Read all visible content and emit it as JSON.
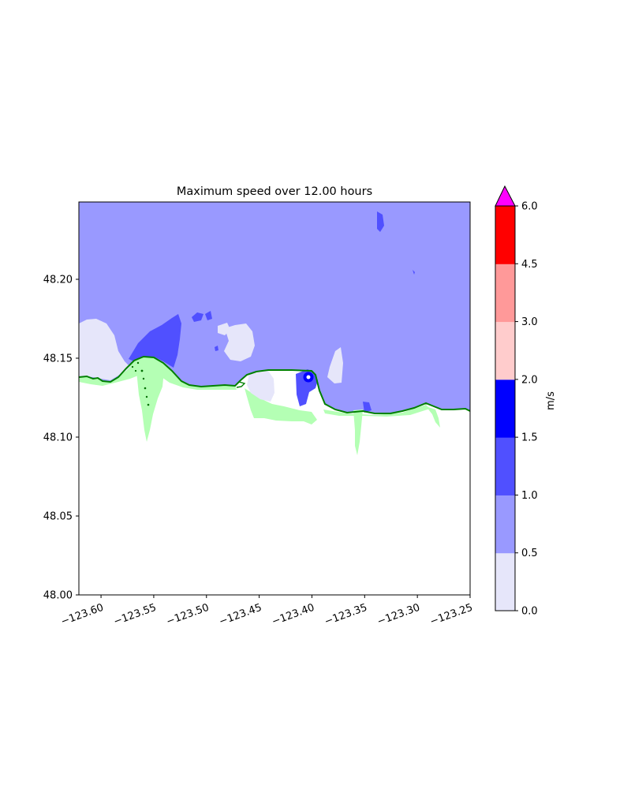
{
  "title": "Maximum speed over 12.00 hours",
  "x_axis": {
    "range": [
      -123.621,
      -123.25
    ],
    "ticks": [
      -123.6,
      -123.55,
      -123.5,
      -123.45,
      -123.4,
      -123.35,
      -123.3,
      -123.25
    ],
    "tick_labels": [
      "−123.60",
      "−123.55",
      "−123.50",
      "−123.45",
      "−123.40",
      "−123.35",
      "−123.30",
      "−123.25"
    ]
  },
  "y_axis": {
    "range": [
      48.0,
      48.249
    ],
    "ticks": [
      48.0,
      48.05,
      48.1,
      48.15,
      48.2
    ],
    "tick_labels": [
      "48.00",
      "48.05",
      "48.10",
      "48.15",
      "48.20"
    ]
  },
  "colorbar": {
    "label": "m/s",
    "levels": [
      0.0,
      0.5,
      1.0,
      1.5,
      2.0,
      3.0,
      4.5,
      6.0
    ],
    "tick_labels": [
      "0.0",
      "0.5",
      "1.0",
      "1.5",
      "2.0",
      "3.0",
      "4.5",
      "6.0"
    ],
    "colors": [
      "#e6e6fa",
      "#9999ff",
      "#5050ff",
      "#0000ff",
      "#ffcccc",
      "#ff9999",
      "#ff0000"
    ],
    "extend_max_color": "#ff00ff"
  },
  "map_colors": {
    "speed_0_0.5": "#e6e6fa",
    "speed_0.5_1.0": "#9999ff",
    "speed_1.0_1.5": "#5050ff",
    "speed_1.5_2.0": "#0000ff",
    "land_inundated": "#b4ffb4",
    "shoreline": "#008000",
    "dry_land": "#ffffff"
  },
  "chart_data": {
    "type": "heatmap",
    "title": "Maximum speed over 12.00 hours",
    "xlabel": "",
    "ylabel": "",
    "xlim": [
      -123.621,
      -123.25
    ],
    "ylim": [
      48.0,
      48.249
    ],
    "colorbar_label": "m/s",
    "levels": [
      0.0,
      0.5,
      1.0,
      1.5,
      2.0,
      3.0,
      4.5,
      6.0
    ],
    "dominant_water_speed_band": "0.5-1.0",
    "features": [
      {
        "band": "0.0-0.5",
        "lon": -123.605,
        "lat": 48.155
      },
      {
        "band": "0.0-0.5",
        "lon": -123.49,
        "lat": 48.163
      },
      {
        "band": "0.0-0.5",
        "lon": -123.44,
        "lat": 48.137
      },
      {
        "band": "0.0-0.5",
        "lon": -123.375,
        "lat": 48.143
      },
      {
        "band": "1.0-1.5",
        "lon": -123.57,
        "lat": 48.16
      },
      {
        "band": "1.0-1.5",
        "lon": -123.335,
        "lat": 48.236
      },
      {
        "band": "1.0-1.5",
        "lon": -123.4,
        "lat": 48.132
      },
      {
        "band": "1.5-2.0",
        "lon": -123.401,
        "lat": 48.138
      }
    ],
    "shoreline_lat_range": [
      48.112,
      48.15
    ]
  }
}
